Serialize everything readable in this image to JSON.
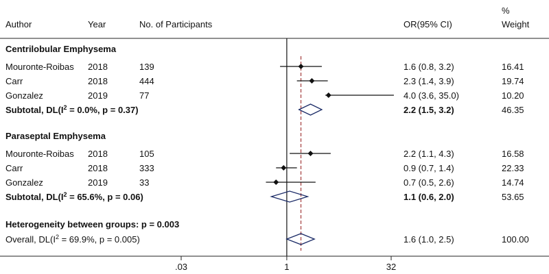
{
  "header": {
    "author": "Author",
    "year": "Year",
    "participants": "No. of Participants",
    "or": "OR(95% CI)",
    "weight_pct": "%",
    "weight": "Weight"
  },
  "heterogeneity": "Heterogeneity between groups: p = 0.003",
  "chart_data": {
    "type": "forest",
    "x_scale": "log",
    "xlim": [
      0.03,
      35
    ],
    "x_ticks": [
      {
        "value": 0.03,
        "label": ".03"
      },
      {
        "value": 1,
        "label": "1"
      },
      {
        "value": 32,
        "label": "32"
      }
    ],
    "null_line": 1,
    "overall_line": 1.6,
    "groups": [
      {
        "title": "Centrilobular Emphysema",
        "studies": [
          {
            "author": "Mouronte-Roibas",
            "year": "2018",
            "n": "139",
            "or": 1.6,
            "lo": 0.8,
            "hi": 3.2,
            "ci_text": "1.6 (0.8, 3.2)",
            "weight": "16.41"
          },
          {
            "author": "Carr",
            "year": "2018",
            "n": "444",
            "or": 2.3,
            "lo": 1.4,
            "hi": 3.9,
            "ci_text": "2.3 (1.4, 3.9)",
            "weight": "19.74"
          },
          {
            "author": "Gonzalez",
            "year": "2019",
            "n": "77",
            "or": 4.0,
            "lo": 3.6,
            "hi": 35.0,
            "ci_text": "4.0 (3.6, 35.0)",
            "weight": "10.20"
          }
        ],
        "subtotal": {
          "label_prefix": "Subtotal, DL(I",
          "label_suffix": " = 0.0%, p = 0.37)",
          "or": 2.2,
          "lo": 1.5,
          "hi": 3.2,
          "ci_text": "2.2 (1.5, 3.2)",
          "weight": "46.35"
        }
      },
      {
        "title": "Paraseptal Emphysema",
        "studies": [
          {
            "author": "Mouronte-Roibas",
            "year": "2018",
            "n": "105",
            "or": 2.2,
            "lo": 1.1,
            "hi": 4.3,
            "ci_text": "2.2 (1.1, 4.3)",
            "weight": "16.58"
          },
          {
            "author": "Carr",
            "year": "2018",
            "n": "333",
            "or": 0.9,
            "lo": 0.7,
            "hi": 1.4,
            "ci_text": "0.9 (0.7, 1.4)",
            "weight": "22.33"
          },
          {
            "author": "Gonzalez",
            "year": "2019",
            "n": "33",
            "or": 0.7,
            "lo": 0.5,
            "hi": 2.6,
            "ci_text": "0.7 (0.5, 2.6)",
            "weight": "14.74"
          }
        ],
        "subtotal": {
          "label_prefix": "Subtotal, DL(I",
          "label_suffix": " = 65.6%, p = 0.06)",
          "or": 1.1,
          "lo": 0.6,
          "hi": 2.0,
          "ci_text": "1.1 (0.6, 2.0)",
          "weight": "53.65"
        }
      }
    ],
    "overall": {
      "label_prefix": "Overall, DL(I",
      "label_suffix": " = 69.9%, p = 0.005)",
      "or": 1.6,
      "lo": 1.0,
      "hi": 2.5,
      "ci_text": "1.6 (1.0, 2.5)",
      "weight": "100.00"
    },
    "colors": {
      "marker": "#111111",
      "diamond": "#1a2a66",
      "overall_line": "#a23a3a",
      "rule": "#222222"
    }
  }
}
